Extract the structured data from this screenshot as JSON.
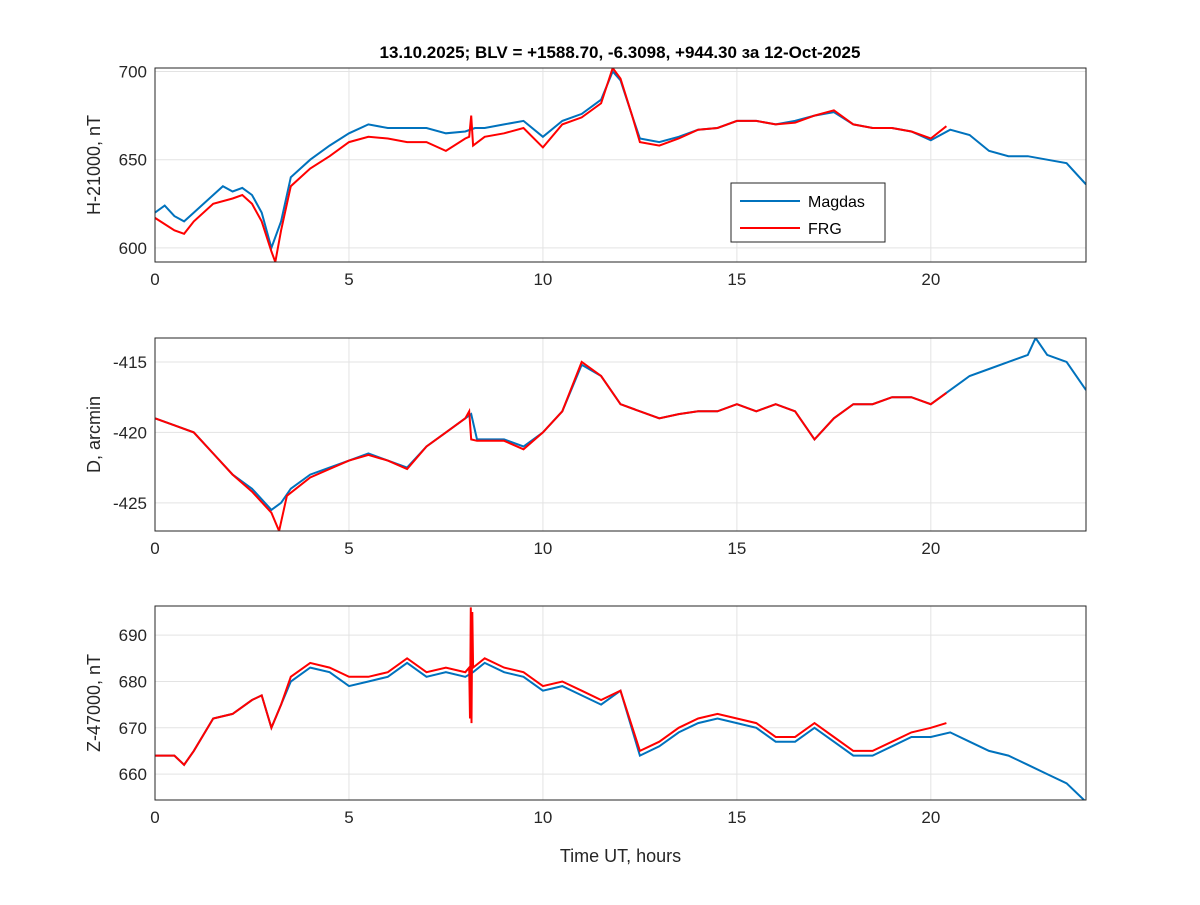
{
  "title": "13.10.2025;   BLV = +1588.70,   -6.3098,  +944.30 за 12-Oct-2025",
  "chart_data": [
    {
      "type": "line",
      "ylabel": "H-21000, nT",
      "xlabel": "",
      "xlim": [
        0,
        24
      ],
      "ylim": [
        592,
        702
      ],
      "xticks": [
        0,
        5,
        10,
        15,
        20
      ],
      "yticks": [
        600,
        650,
        700
      ],
      "grid": true,
      "legend": {
        "placement": "center-right",
        "entries": [
          "Magdas",
          "FRG"
        ]
      },
      "series": [
        {
          "name": "Magdas",
          "color": "#0072BD",
          "x": [
            0,
            0.25,
            0.5,
            0.75,
            1,
            1.5,
            1.75,
            2,
            2.25,
            2.5,
            2.75,
            3,
            3.25,
            3.5,
            4,
            4.5,
            5,
            5.5,
            6,
            6.5,
            7,
            7.5,
            8,
            8.25,
            8.5,
            9,
            9.5,
            10,
            10.5,
            11,
            11.5,
            11.8,
            12,
            12.3,
            12.5,
            13,
            13.5,
            14,
            14.5,
            15,
            15.5,
            16,
            16.5,
            17,
            17.5,
            18,
            18.5,
            19,
            19.5,
            20,
            20.5,
            21,
            21.5,
            22,
            22.5,
            23,
            23.5,
            24
          ],
          "y": [
            620,
            624,
            618,
            615,
            620,
            630,
            635,
            632,
            634,
            630,
            620,
            600,
            615,
            640,
            650,
            658,
            665,
            670,
            668,
            668,
            668,
            665,
            666,
            668,
            668,
            670,
            672,
            663,
            672,
            676,
            684,
            700,
            695,
            675,
            662,
            660,
            663,
            667,
            668,
            672,
            672,
            670,
            672,
            675,
            677,
            670,
            668,
            668,
            666,
            661,
            667,
            664,
            655,
            652,
            652,
            650,
            648,
            636
          ]
        },
        {
          "name": "FRG",
          "color": "#FF0000",
          "x": [
            0,
            0.5,
            0.75,
            1,
            1.5,
            2,
            2.25,
            2.5,
            2.75,
            3,
            3.1,
            3.25,
            3.5,
            4,
            4.5,
            5,
            5.5,
            6,
            6.5,
            7,
            7.5,
            8,
            8.1,
            8.15,
            8.2,
            8.5,
            9,
            9.5,
            10,
            10.5,
            11,
            11.5,
            11.8,
            12,
            12.3,
            12.5,
            13,
            13.5,
            14,
            14.5,
            15,
            15.5,
            16,
            16.5,
            17,
            17.5,
            18,
            18.5,
            19,
            19.5,
            20,
            20.4
          ],
          "y": [
            617,
            610,
            608,
            615,
            625,
            628,
            630,
            625,
            615,
            598,
            592,
            610,
            635,
            645,
            652,
            660,
            663,
            662,
            660,
            660,
            655,
            662,
            663,
            675,
            658,
            663,
            665,
            668,
            657,
            670,
            674,
            682,
            702,
            696,
            675,
            660,
            658,
            662,
            667,
            668,
            672,
            672,
            670,
            671,
            675,
            678,
            670,
            668,
            668,
            666,
            662,
            669
          ]
        }
      ]
    },
    {
      "type": "line",
      "ylabel": "D, arcmin",
      "xlabel": "",
      "xlim": [
        0,
        24
      ],
      "ylim": [
        -427,
        -413.3
      ],
      "xticks": [
        0,
        5,
        10,
        15,
        20
      ],
      "yticks": [
        -425,
        -420,
        -415
      ],
      "grid": true,
      "series": [
        {
          "name": "Magdas",
          "color": "#0072BD",
          "x": [
            0,
            0.5,
            1,
            1.5,
            2,
            2.5,
            3,
            3.25,
            3.5,
            4,
            4.5,
            5,
            5.5,
            6,
            6.5,
            7,
            7.5,
            8,
            8.15,
            8.3,
            9,
            9.5,
            10,
            10.5,
            11,
            11.5,
            12,
            12.5,
            13,
            13.5,
            14,
            14.5,
            15,
            15.5,
            16,
            16.5,
            17,
            17.5,
            18,
            18.5,
            19,
            19.5,
            20,
            20.5,
            21,
            21.5,
            22,
            22.5,
            22.7,
            23,
            23.5,
            24
          ],
          "y": [
            -419,
            -419.5,
            -420,
            -421.5,
            -423,
            -424,
            -425.5,
            -425,
            -424,
            -423,
            -422.5,
            -422,
            -421.5,
            -422,
            -422.5,
            -421,
            -420,
            -419,
            -418.7,
            -420.5,
            -420.5,
            -421,
            -420,
            -418.5,
            -415.2,
            -416,
            -418,
            -418.5,
            -419,
            -418.7,
            -418.5,
            -418.5,
            -418,
            -418.5,
            -418,
            -418.5,
            -420.5,
            -419,
            -418,
            -418,
            -417.5,
            -417.5,
            -418,
            -417,
            -416,
            -415.5,
            -415,
            -414.5,
            -413.3,
            -414.5,
            -415,
            -417
          ]
        },
        {
          "name": "FRG",
          "color": "#FF0000",
          "x": [
            0,
            0.5,
            1,
            1.5,
            2,
            2.5,
            3,
            3.2,
            3.4,
            4,
            4.5,
            5,
            5.5,
            6,
            6.5,
            7,
            7.5,
            8,
            8.1,
            8.15,
            8.3,
            9,
            9.5,
            10,
            10.5,
            11,
            11.5,
            12,
            12.5,
            13,
            13.5,
            14,
            14.5,
            15,
            15.5,
            16,
            16.5,
            17,
            17.5,
            18,
            18.5,
            19,
            19.5,
            20,
            20.4
          ],
          "y": [
            -419,
            -419.5,
            -420,
            -421.5,
            -423,
            -424.2,
            -425.7,
            -427,
            -424.5,
            -423.2,
            -422.6,
            -422,
            -421.6,
            -422,
            -422.6,
            -421,
            -420,
            -419,
            -418.5,
            -420.5,
            -420.6,
            -420.6,
            -421.2,
            -420,
            -418.5,
            -415,
            -416,
            -418,
            -418.5,
            -419,
            -418.7,
            -418.5,
            -418.5,
            -418,
            -418.5,
            -418,
            -418.5,
            -420.5,
            -419,
            -418,
            -418,
            -417.5,
            -417.5,
            -418,
            -417.2
          ]
        }
      ]
    },
    {
      "type": "line",
      "ylabel": "Z-47000, nT",
      "xlabel": "Time UT, hours",
      "xlim": [
        0,
        24
      ],
      "ylim": [
        654.4,
        696.3
      ],
      "xticks": [
        0,
        5,
        10,
        15,
        20
      ],
      "yticks": [
        660,
        670,
        680,
        690
      ],
      "grid": true,
      "series": [
        {
          "name": "Magdas",
          "color": "#0072BD",
          "x": [
            0,
            0.5,
            0.75,
            1,
            1.5,
            2,
            2.5,
            2.75,
            3,
            3.25,
            3.5,
            4,
            4.5,
            5,
            5.5,
            6,
            6.5,
            7,
            7.5,
            8,
            8.2,
            8.5,
            9,
            9.5,
            10,
            10.5,
            11,
            11.5,
            12,
            12.5,
            13,
            13.5,
            14,
            14.5,
            15,
            15.5,
            16,
            16.5,
            17,
            17.5,
            18,
            18.5,
            19,
            19.5,
            20,
            20.5,
            21,
            21.5,
            22,
            22.5,
            23,
            23.5,
            24
          ],
          "y": [
            664,
            664,
            662,
            665,
            672,
            673,
            676,
            677,
            670,
            675,
            680,
            683,
            682,
            679,
            680,
            681,
            684,
            681,
            682,
            681,
            682,
            684,
            682,
            681,
            678,
            679,
            677,
            675,
            678,
            664,
            666,
            669,
            671,
            672,
            671,
            670,
            667,
            667,
            670,
            667,
            664,
            664,
            666,
            668,
            668,
            669,
            667,
            665,
            664,
            662,
            660,
            658,
            654
          ]
        },
        {
          "name": "FRG",
          "color": "#FF0000",
          "x": [
            0,
            0.5,
            0.75,
            1,
            1.5,
            2,
            2.5,
            2.75,
            3,
            3.25,
            3.5,
            4,
            4.5,
            5,
            5.5,
            6,
            6.5,
            7,
            7.5,
            8,
            8.1,
            8.12,
            8.14,
            8.16,
            8.18,
            8.2,
            8.5,
            9,
            9.5,
            10,
            10.5,
            11,
            11.5,
            12,
            12.5,
            13,
            13.5,
            14,
            14.5,
            15,
            15.5,
            16,
            16.5,
            17,
            17.5,
            18,
            18.5,
            19,
            19.5,
            20,
            20.4
          ],
          "y": [
            664,
            664,
            662,
            665,
            672,
            673,
            676,
            677,
            670,
            675,
            681,
            684,
            683,
            681,
            681,
            682,
            685,
            682,
            683,
            682,
            683,
            672,
            696,
            671,
            695,
            683,
            685,
            683,
            682,
            679,
            680,
            678,
            676,
            678,
            665,
            667,
            670,
            672,
            673,
            672,
            671,
            668,
            668,
            671,
            668,
            665,
            665,
            667,
            669,
            670,
            671
          ]
        }
      ]
    }
  ]
}
